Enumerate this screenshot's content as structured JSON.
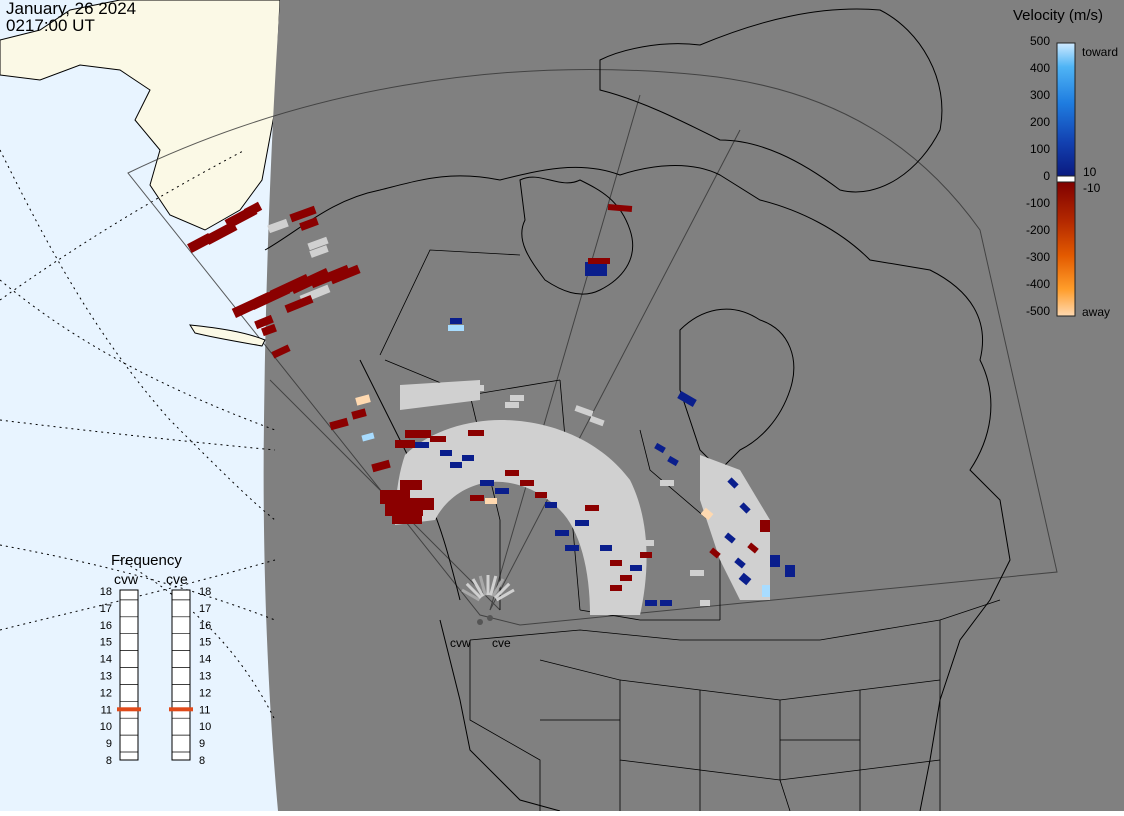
{
  "header": {
    "date": "January, 26 2024",
    "time": "0217:00 UT"
  },
  "colorbar": {
    "title": "Velocity (m/s)",
    "ticks": [
      "500",
      "400",
      "300",
      "200",
      "100",
      "0",
      "-100",
      "-200",
      "-300",
      "-400",
      "-500"
    ],
    "toward_label": "toward",
    "away_label": "away",
    "pos_threshold": "10",
    "neg_threshold": "-10"
  },
  "frequency": {
    "title": "Frequency",
    "radar_west": "cvw",
    "radar_east": "cve",
    "levels": [
      "18",
      "17",
      "16",
      "15",
      "14",
      "13",
      "12",
      "11",
      "10",
      "9",
      "8"
    ],
    "cvw_value": 11,
    "cve_value": 11
  },
  "map": {
    "radar_west_label": "cvw",
    "radar_east_label": "cve"
  },
  "colors": {
    "land_dark": "#808080",
    "ocean_light": "#e8f4ff",
    "land_light": "#fbf9e6",
    "ground_scatter": "#d0d0d0",
    "toward_strong": "#0a1e8c",
    "away_strong": "#8b0000",
    "freq_marker": "#e04a1a"
  }
}
